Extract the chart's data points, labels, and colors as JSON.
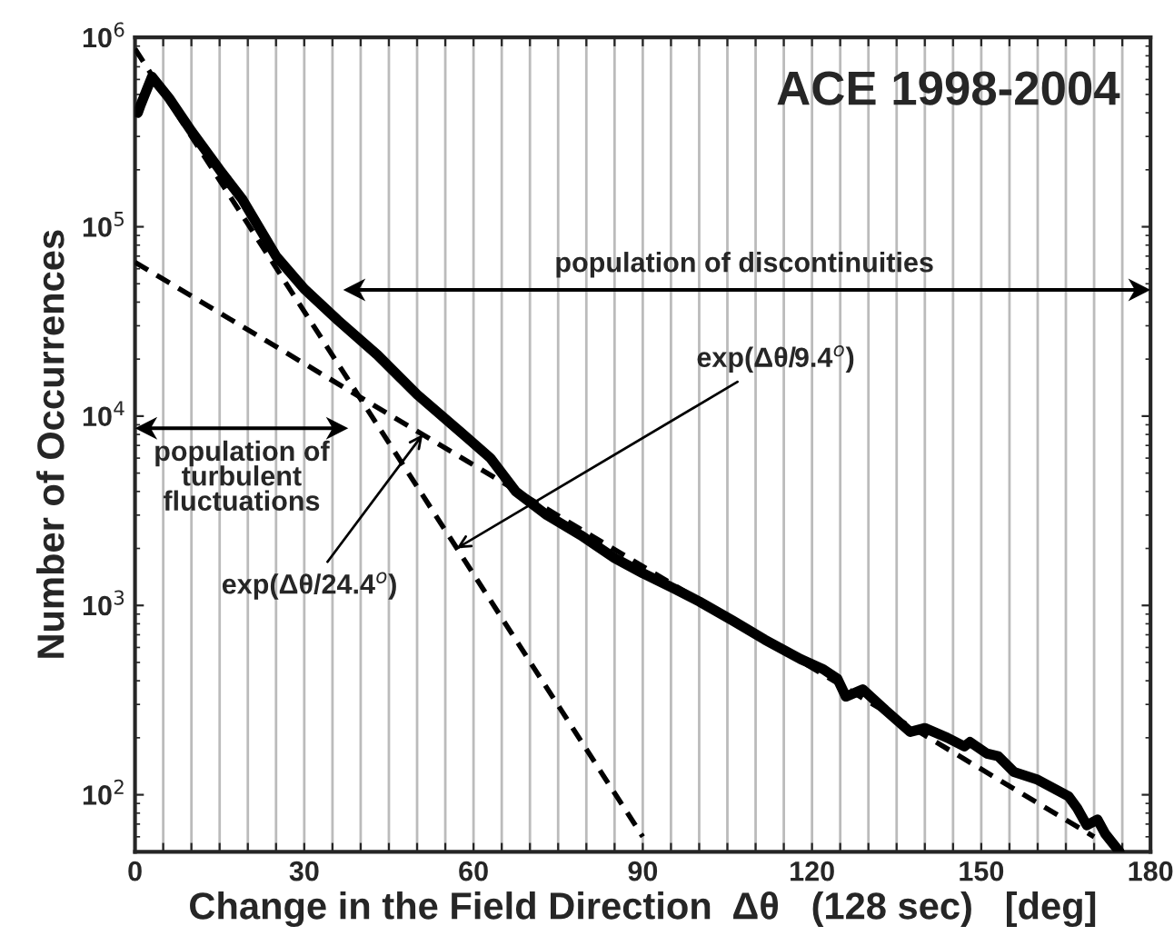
{
  "chart_data": {
    "type": "line",
    "title": "ACE 1998-2004",
    "xlabel": "Change in the Field Direction  Δθ   (128 sec)   [deg]",
    "ylabel": "Number of Occurrences",
    "log": "y",
    "grid": "x",
    "xlim": [
      0,
      180
    ],
    "ylim": [
      50,
      1000000
    ],
    "xticks": [
      0,
      {
        "value": 5,
        "label": null
      },
      {
        "value": 10,
        "label": null
      },
      {
        "value": 15,
        "label": null
      },
      {
        "value": 20,
        "label": null
      },
      {
        "value": 25,
        "label": null
      },
      30,
      {
        "value": 35,
        "label": null
      },
      {
        "value": 40,
        "label": null
      },
      {
        "value": 45,
        "label": null
      },
      {
        "value": 50,
        "label": null
      },
      {
        "value": 55,
        "label": null
      },
      60,
      {
        "value": 65,
        "label": null
      },
      {
        "value": 70,
        "label": null
      },
      {
        "value": 75,
        "label": null
      },
      {
        "value": 80,
        "label": null
      },
      {
        "value": 85,
        "label": null
      },
      90,
      {
        "value": 95,
        "label": null
      },
      {
        "value": 100,
        "label": null
      },
      {
        "value": 105,
        "label": null
      },
      {
        "value": 110,
        "label": null
      },
      {
        "value": 115,
        "label": null
      },
      120,
      {
        "value": 125,
        "label": null
      },
      {
        "value": 130,
        "label": null
      },
      {
        "value": 135,
        "label": null
      },
      {
        "value": 140,
        "label": null
      },
      {
        "value": 145,
        "label": null
      },
      150,
      {
        "value": 155,
        "label": null
      },
      {
        "value": 160,
        "label": null
      },
      {
        "value": 165,
        "label": null
      },
      {
        "value": 170,
        "label": null
      },
      {
        "value": 175,
        "label": null
      },
      180
    ],
    "yticks": [
      {
        "value": 100,
        "label": "10$^{2}$"
      },
      {
        "value": 1000,
        "label": "10$^{3}$"
      },
      {
        "value": 10000,
        "label": "10$^{4}$"
      },
      {
        "value": 100000,
        "label": "10$^{5}$"
      },
      {
        "value": 1000000,
        "label": "10$^{6}$"
      }
    ],
    "series": [
      {
        "line_style": "solid",
        "color": "#000000",
        "x": [
          0.5,
          1,
          3,
          6,
          10,
          15,
          19,
          25,
          30,
          36,
          43,
          50,
          58,
          63,
          67.5,
          73,
          79,
          85,
          90,
          95.5,
          100,
          106,
          111.6,
          118,
          122,
          124.5,
          126,
          129,
          133,
          137.4,
          140,
          144,
          147,
          148,
          151,
          153,
          155.8,
          160,
          165.5,
          167,
          168.7,
          170.6,
          172,
          174.5
        ],
        "values": [
          400000,
          440000,
          620000,
          480000,
          320000,
          200000,
          140000,
          70000,
          47000,
          32000,
          21000,
          13000,
          8100,
          6000,
          4000,
          3000,
          2350,
          1780,
          1480,
          1230,
          1050,
          830,
          660,
          520,
          460,
          410,
          330,
          360,
          280,
          215,
          225,
          200,
          180,
          190,
          165,
          160,
          132,
          120,
          98,
          85,
          69,
          74,
          62,
          50
        ]
      },
      {
        "line_style": "dashed",
        "color": "#000000",
        "x": [
          0,
          90
        ],
        "values": [
          870000,
          60
        ]
      },
      {
        "line_style": "dashed",
        "color": "#000000",
        "x": [
          0,
          170
        ],
        "values": [
          65000,
          60
        ]
      }
    ],
    "annotations": [
      "population of discontinuities",
      "population of\nturbulent\nfluctuations",
      {
        "text": "exp(Δθ/9.4$^{o}$)",
        "x": 57,
        "y": 2000
      },
      {
        "text": "exp(Δθ/24.4$^{o}$)",
        "x": 51,
        "y": 8000
      }
    ]
  }
}
